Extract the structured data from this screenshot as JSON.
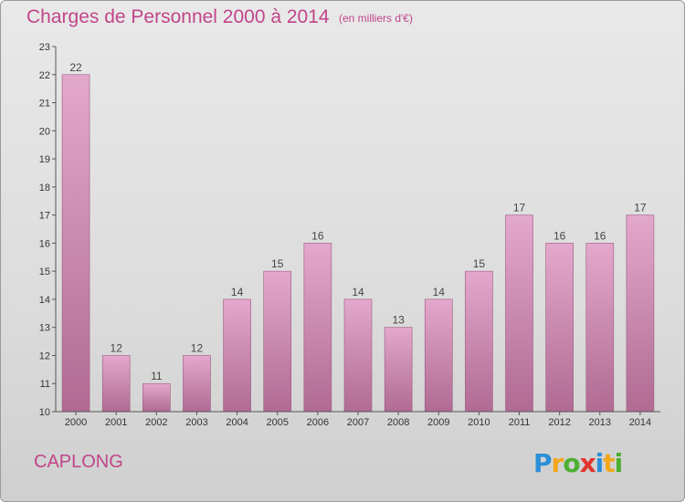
{
  "header": {
    "title": "Charges de Personnel 2000 à 2014",
    "subtitle": "(en milliers d'€)"
  },
  "place_name": "CAPLONG",
  "logo": {
    "letters": [
      "P",
      "r",
      "o",
      "x",
      "i",
      "t",
      "i"
    ],
    "colors": [
      "#2b8fd8",
      "#f2a81a",
      "#4caf32",
      "#e2352d",
      "#2b8fd8",
      "#f2a81a",
      "#4caf32"
    ],
    "brand": "Proxiti"
  },
  "colors": {
    "accent": "#c0458a",
    "bar_top": "#e4a8cc",
    "bar_bottom": "#b06b93"
  },
  "chart_data": {
    "type": "bar",
    "categories": [
      "2000",
      "2001",
      "2002",
      "2003",
      "2004",
      "2005",
      "2006",
      "2007",
      "2008",
      "2009",
      "2010",
      "2011",
      "2012",
      "2013",
      "2014"
    ],
    "values": [
      22,
      12,
      11,
      12,
      14,
      15,
      16,
      14,
      13,
      14,
      15,
      17,
      16,
      16,
      17
    ],
    "title": "Charges de Personnel 2000 à 2014",
    "subtitle": "(en milliers d'€)",
    "ylim": [
      10,
      23
    ],
    "yticks": [
      10,
      11,
      12,
      13,
      14,
      15,
      16,
      17,
      18,
      19,
      20,
      21,
      22,
      23
    ],
    "grid": false,
    "legend": "none"
  }
}
